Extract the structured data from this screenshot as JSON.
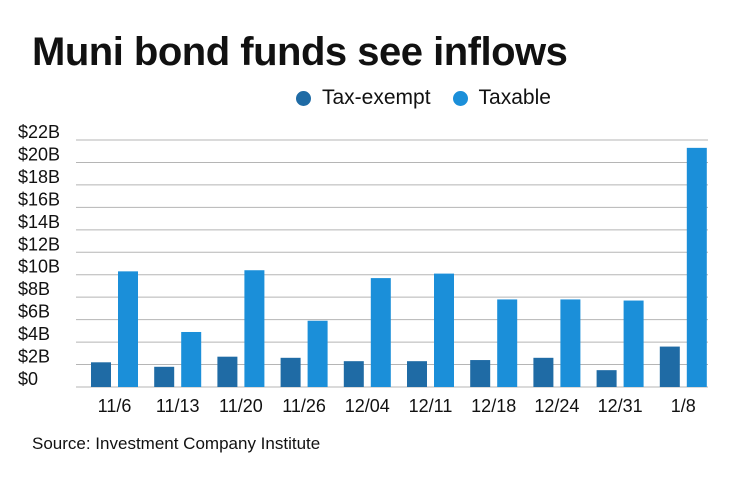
{
  "title": "Muni bond funds see inflows",
  "source": "Source: Investment Company Institute",
  "colors": {
    "tax_exempt": "#1f6ba5",
    "taxable": "#1b8fd9",
    "grid": "#b5b5b5"
  },
  "chart_data": {
    "type": "bar",
    "title": "Muni bond funds see inflows",
    "xlabel": "",
    "ylabel": "",
    "categories": [
      "11/6",
      "11/13",
      "11/20",
      "11/26",
      "12/04",
      "12/11",
      "12/18",
      "12/24",
      "12/31",
      "1/8"
    ],
    "series": [
      {
        "name": "Tax-exempt",
        "values": [
          2.2,
          1.8,
          2.7,
          2.6,
          2.3,
          2.3,
          2.4,
          2.6,
          1.5,
          3.6
        ]
      },
      {
        "name": "Taxable",
        "values": [
          10.3,
          4.9,
          10.4,
          5.9,
          9.7,
          10.1,
          7.8,
          7.8,
          7.7,
          21.3
        ]
      }
    ],
    "ylim": [
      0,
      22
    ],
    "yticks": [
      "$0",
      "$2B",
      "$4B",
      "$6B",
      "$8B",
      "$10B",
      "$12B",
      "$14B",
      "$16B",
      "$18B",
      "$20B",
      "$22B"
    ],
    "grid": true,
    "legend_position": "top"
  }
}
